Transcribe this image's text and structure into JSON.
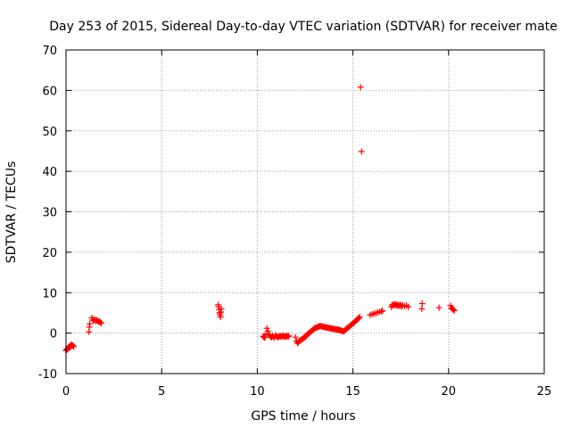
{
  "chart_data": {
    "type": "scatter",
    "title": "Day 253 of 2015, Sidereal Day-to-day VTEC variation (SDTVAR) for receiver mate",
    "xlabel": "GPS time / hours",
    "ylabel": "SDTVAR / TECUs",
    "xlim": [
      0,
      25
    ],
    "ylim": [
      -10,
      70
    ],
    "x_ticks": [
      "0",
      "5",
      "10",
      "15",
      "20",
      "25"
    ],
    "y_ticks": [
      "-10",
      "0",
      "10",
      "20",
      "30",
      "40",
      "50",
      "60",
      "70"
    ],
    "grid": true,
    "marker": "plus",
    "colors": {
      "points": "#ff0000",
      "grid": "#a0a0a0",
      "axes": "#000000"
    },
    "series": [
      {
        "points": [
          [
            0.0,
            -4.3
          ],
          [
            0.03,
            -4.1
          ],
          [
            0.06,
            -3.9
          ],
          [
            0.09,
            -4.0
          ],
          [
            0.12,
            -3.6
          ],
          [
            0.15,
            -3.4
          ],
          [
            0.18,
            -3.3
          ],
          [
            0.21,
            -3.5
          ],
          [
            0.24,
            -3.0
          ],
          [
            0.27,
            -3.2
          ],
          [
            0.3,
            -2.8
          ],
          [
            0.35,
            -3.1
          ],
          [
            0.4,
            -3.3
          ],
          [
            1.2,
            0.3
          ],
          [
            1.22,
            1.5
          ],
          [
            1.24,
            2.3
          ],
          [
            1.35,
            3.8
          ],
          [
            1.4,
            3.3
          ],
          [
            1.45,
            3.1
          ],
          [
            1.5,
            3.4
          ],
          [
            1.55,
            3.0
          ],
          [
            1.6,
            3.2
          ],
          [
            1.65,
            3.0
          ],
          [
            1.7,
            2.8
          ],
          [
            1.75,
            2.9
          ],
          [
            1.8,
            2.6
          ],
          [
            1.85,
            2.5
          ],
          [
            7.95,
            7.0
          ],
          [
            7.98,
            6.5
          ],
          [
            8.0,
            5.8
          ],
          [
            8.02,
            5.0
          ],
          [
            8.05,
            4.5
          ],
          [
            8.08,
            4.0
          ],
          [
            8.1,
            5.2
          ],
          [
            8.12,
            6.0
          ],
          [
            10.3,
            -0.8
          ],
          [
            10.35,
            -1.0
          ],
          [
            10.4,
            -1.1
          ],
          [
            10.45,
            -0.2
          ],
          [
            10.5,
            1.2
          ],
          [
            10.55,
            0.5
          ],
          [
            10.6,
            -0.3
          ],
          [
            10.65,
            -0.6
          ],
          [
            10.7,
            -0.9
          ],
          [
            10.75,
            -1.0
          ],
          [
            10.8,
            -0.7
          ],
          [
            10.85,
            -0.9
          ],
          [
            10.9,
            -1.1
          ],
          [
            10.95,
            -0.5
          ],
          [
            11.0,
            -0.8
          ],
          [
            11.05,
            -0.9
          ],
          [
            11.1,
            -1.0
          ],
          [
            11.15,
            -0.7
          ],
          [
            11.2,
            -0.8
          ],
          [
            11.25,
            -0.9
          ],
          [
            11.3,
            -0.6
          ],
          [
            11.35,
            -0.8
          ],
          [
            11.4,
            -0.7
          ],
          [
            11.45,
            -0.9
          ],
          [
            11.5,
            -0.8
          ],
          [
            11.55,
            -0.6
          ],
          [
            11.6,
            -0.9
          ],
          [
            11.65,
            -0.7
          ],
          [
            12.0,
            -1.0
          ],
          [
            12.05,
            -2.0
          ],
          [
            12.1,
            -2.5
          ],
          [
            12.15,
            -2.2
          ],
          [
            12.2,
            -2.0
          ],
          [
            12.25,
            -1.8
          ],
          [
            12.3,
            -1.6
          ],
          [
            12.35,
            -1.5
          ],
          [
            12.4,
            -1.3
          ],
          [
            12.45,
            -1.1
          ],
          [
            12.5,
            -0.9
          ],
          [
            12.55,
            -0.7
          ],
          [
            12.6,
            -0.4
          ],
          [
            12.65,
            -0.2
          ],
          [
            12.7,
            0.0
          ],
          [
            12.75,
            0.2
          ],
          [
            12.8,
            0.4
          ],
          [
            12.85,
            0.6
          ],
          [
            12.9,
            0.8
          ],
          [
            12.95,
            1.0
          ],
          [
            13.0,
            1.2
          ],
          [
            13.05,
            1.3
          ],
          [
            13.1,
            1.4
          ],
          [
            13.15,
            1.5
          ],
          [
            13.2,
            1.6
          ],
          [
            13.25,
            1.7
          ],
          [
            13.3,
            1.8
          ],
          [
            13.35,
            1.7
          ],
          [
            13.4,
            1.6
          ],
          [
            13.45,
            1.6
          ],
          [
            13.5,
            1.5
          ],
          [
            13.55,
            1.5
          ],
          [
            13.6,
            1.4
          ],
          [
            13.65,
            1.4
          ],
          [
            13.7,
            1.3
          ],
          [
            13.75,
            1.3
          ],
          [
            13.8,
            1.2
          ],
          [
            13.85,
            1.2
          ],
          [
            13.9,
            1.1
          ],
          [
            13.95,
            1.1
          ],
          [
            14.0,
            1.0
          ],
          [
            14.05,
            1.0
          ],
          [
            14.1,
            0.9
          ],
          [
            14.15,
            0.9
          ],
          [
            14.2,
            0.9
          ],
          [
            14.25,
            0.8
          ],
          [
            14.3,
            0.8
          ],
          [
            14.35,
            0.7
          ],
          [
            14.4,
            0.6
          ],
          [
            14.45,
            0.5
          ],
          [
            14.5,
            0.5
          ],
          [
            14.55,
            0.6
          ],
          [
            14.6,
            0.8
          ],
          [
            14.65,
            1.0
          ],
          [
            14.7,
            1.2
          ],
          [
            14.75,
            1.4
          ],
          [
            14.8,
            1.6
          ],
          [
            14.85,
            1.8
          ],
          [
            14.9,
            2.0
          ],
          [
            14.95,
            2.2
          ],
          [
            15.0,
            2.4
          ],
          [
            15.05,
            2.6
          ],
          [
            15.1,
            2.8
          ],
          [
            15.15,
            3.0
          ],
          [
            15.2,
            3.2
          ],
          [
            15.25,
            3.5
          ],
          [
            15.3,
            3.7
          ],
          [
            15.35,
            4.0
          ],
          [
            15.4,
            60.8
          ],
          [
            15.45,
            44.9
          ],
          [
            15.9,
            4.5
          ],
          [
            16.0,
            4.7
          ],
          [
            16.1,
            4.8
          ],
          [
            16.2,
            5.0
          ],
          [
            16.3,
            5.1
          ],
          [
            16.4,
            5.3
          ],
          [
            16.5,
            5.4
          ],
          [
            16.55,
            5.5
          ],
          [
            17.0,
            6.5
          ],
          [
            17.05,
            7.0
          ],
          [
            17.1,
            6.8
          ],
          [
            17.15,
            7.2
          ],
          [
            17.2,
            6.9
          ],
          [
            17.25,
            7.1
          ],
          [
            17.3,
            6.8
          ],
          [
            17.35,
            7.0
          ],
          [
            17.4,
            6.7
          ],
          [
            17.45,
            7.0
          ],
          [
            17.5,
            6.9
          ],
          [
            17.55,
            6.6
          ],
          [
            17.6,
            6.9
          ],
          [
            17.7,
            6.7
          ],
          [
            17.8,
            6.8
          ],
          [
            17.9,
            6.5
          ],
          [
            18.6,
            6.0
          ],
          [
            18.62,
            7.3
          ],
          [
            19.5,
            6.3
          ],
          [
            20.1,
            6.8
          ],
          [
            20.15,
            6.2
          ],
          [
            20.2,
            6.0
          ],
          [
            20.25,
            5.8
          ],
          [
            20.3,
            5.6
          ]
        ]
      }
    ]
  }
}
